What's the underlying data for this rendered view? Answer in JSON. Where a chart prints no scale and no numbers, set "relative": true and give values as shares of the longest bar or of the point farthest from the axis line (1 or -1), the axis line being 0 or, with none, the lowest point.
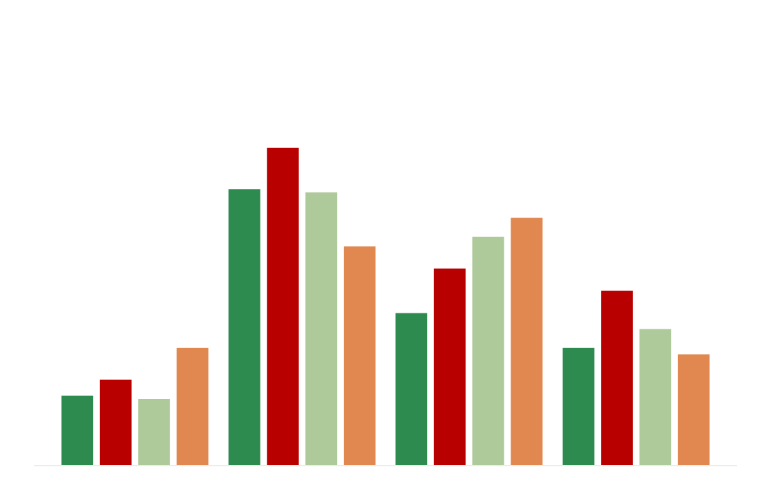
{
  "chart_data": {
    "type": "bar",
    "relative": true,
    "categories": [
      null,
      null,
      null,
      null
    ],
    "series": [
      {
        "color": "#2e8b50",
        "values": [
          0.22,
          0.87,
          0.48,
          0.37
        ]
      },
      {
        "color": "#b80000",
        "values": [
          0.27,
          1,
          0.62,
          0.55
        ]
      },
      {
        "color": "#aec99a",
        "values": [
          0.21,
          0.86,
          0.72,
          0.43
        ]
      },
      {
        "color": "#e08850",
        "values": [
          0.37,
          0.69,
          0.78,
          0.35
        ]
      }
    ]
  }
}
